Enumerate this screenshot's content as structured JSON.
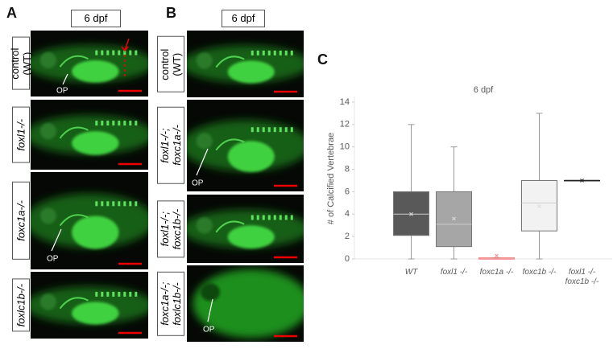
{
  "panel_a": {
    "label": "A",
    "header": "6 dpf",
    "rows": [
      "control (WT)",
      "foxl1-/-",
      "foxc1a-/-",
      "foxlc1b-/-"
    ],
    "annotations": [
      "OP",
      "OP"
    ]
  },
  "panel_b": {
    "label": "B",
    "header": "6 dpf",
    "rows": [
      "control (WT)",
      "foxl1-/-; foxc1a-/-",
      "foxl1-/-; foxc1b-/-",
      "foxc1a-/-; foxlc1b-/-"
    ],
    "annotations": [
      "OP",
      "OP"
    ]
  },
  "panel_c_label": "C",
  "chart_data": {
    "type": "box",
    "title": "6 dpf",
    "y_label": "# of Calcified Vertebrae",
    "categories": [
      "WT",
      "foxl1 -/-",
      "foxc1a -/-",
      "foxc1b -/-",
      "foxl1 -/- foxc1b -/-"
    ],
    "boxes": [
      {
        "min": 0,
        "q1": 2.1,
        "median": 4,
        "q3": 6,
        "max": 12,
        "mean": 4,
        "color": "#595959"
      },
      {
        "min": 0,
        "q1": 1.1,
        "median": 3.1,
        "q3": 6,
        "max": 10,
        "mean": 3.6,
        "color": "#a6a6a6"
      },
      {
        "min": 0,
        "q1": 0,
        "median": 0,
        "q3": 0.1,
        "max": 0.1,
        "mean": 0.3,
        "color": "#f4b6b6"
      },
      {
        "min": 0,
        "q1": 2.5,
        "median": 5,
        "q3": 7,
        "max": 13,
        "mean": 4.7,
        "color": "#f2f2f2"
      },
      {
        "min": 7,
        "q1": 7,
        "median": 7,
        "q3": 7,
        "max": 7,
        "mean": 7,
        "color": "#222222"
      }
    ],
    "ylim": [
      0,
      14.5
    ],
    "yticks": [
      0,
      2,
      4,
      6,
      8,
      10,
      12,
      14
    ],
    "grid": false
  }
}
